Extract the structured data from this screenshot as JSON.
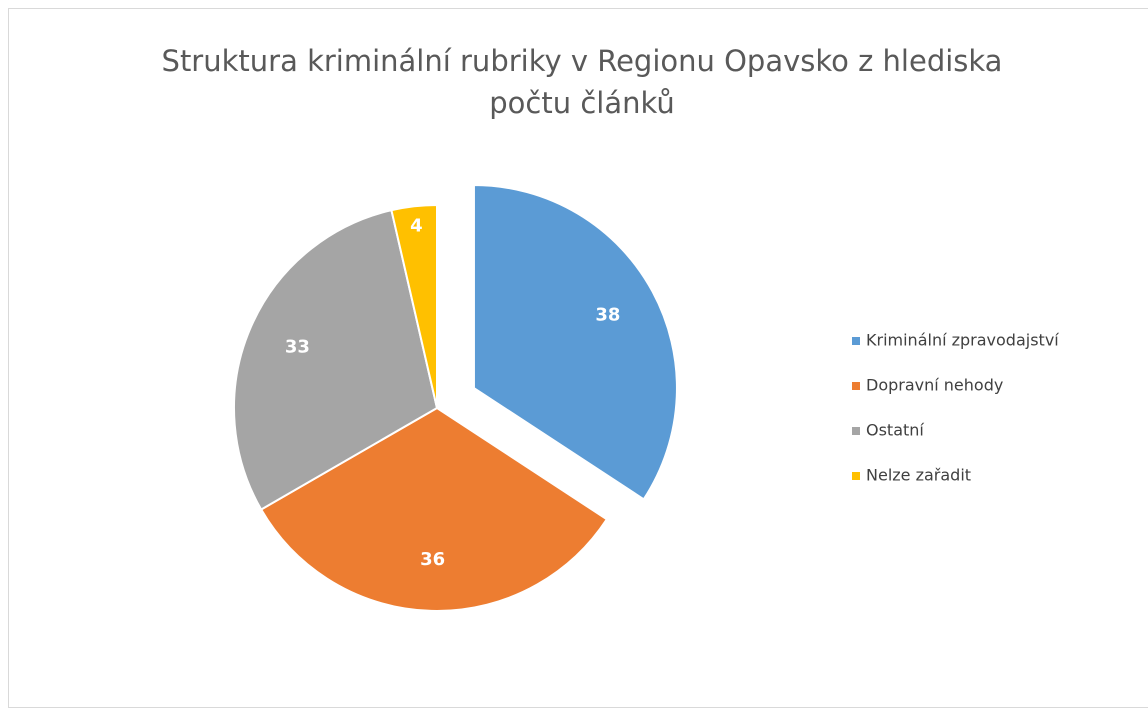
{
  "chart_data": {
    "type": "pie",
    "title": "Struktura kriminální rubriky v Regionu Opavsko z hlediska počtu článků",
    "categories": [
      "Kriminální zpravodajství",
      "Dopravní nehody",
      "Ostatní",
      "Nelze zařadit"
    ],
    "values": [
      38,
      36,
      33,
      4
    ],
    "colors": [
      "#5b9bd5",
      "#ed7d31",
      "#a5a5a5",
      "#ffc000"
    ],
    "exploded": [
      0
    ],
    "legend": "right"
  }
}
